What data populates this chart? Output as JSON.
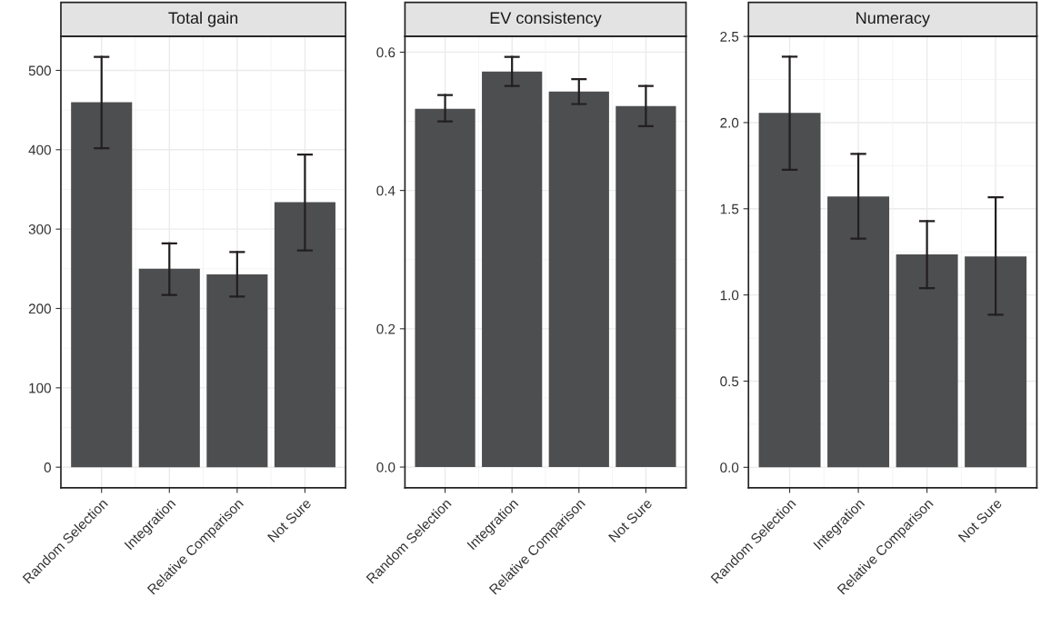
{
  "chart_data": [
    {
      "type": "bar",
      "title": "Total gain",
      "categories": [
        "Random Selection",
        "Integration",
        "Relative Comparison",
        "Not Sure"
      ],
      "values": [
        460,
        250,
        243,
        334
      ],
      "errors": [
        [
          402,
          517
        ],
        [
          217,
          282
        ],
        [
          215,
          271
        ],
        [
          273,
          394
        ]
      ],
      "color": "#4d4e50",
      "ylim": [
        -26,
        543
      ],
      "yticks": [
        0,
        100,
        200,
        300,
        400,
        500
      ],
      "grid": true
    },
    {
      "type": "bar",
      "title": "EV consistency",
      "categories": [
        "Random Selection",
        "Integration",
        "Relative Comparison",
        "Not Sure"
      ],
      "values": [
        0.518,
        0.572,
        0.543,
        0.522
      ],
      "errors": [
        [
          0.5,
          0.538
        ],
        [
          0.551,
          0.593
        ],
        [
          0.525,
          0.561
        ],
        [
          0.493,
          0.551
        ]
      ],
      "color": "#4d4e50",
      "ylim": [
        -0.03,
        0.623
      ],
      "yticks": [
        {
          "value": 0,
          "label": "0.0"
        },
        0.2,
        0.4,
        0.6
      ],
      "grid": true
    },
    {
      "type": "bar",
      "title": "Numeracy",
      "categories": [
        "Random Selection",
        "Integration",
        "Relative Comparison",
        "Not Sure"
      ],
      "values": [
        2.056,
        1.572,
        1.235,
        1.224
      ],
      "errors": [
        [
          1.726,
          2.382
        ],
        [
          1.327,
          1.818
        ],
        [
          1.039,
          1.428
        ],
        [
          0.885,
          1.567
        ]
      ],
      "color": "#4d4e50",
      "ylim": [
        -0.119,
        2.501
      ],
      "yticks": [
        {
          "value": 0,
          "label": "0.0"
        },
        0.5,
        {
          "value": 1,
          "label": "1.0"
        },
        1.5,
        {
          "value": 2,
          "label": "2.0"
        },
        2.5
      ],
      "grid": true
    }
  ]
}
